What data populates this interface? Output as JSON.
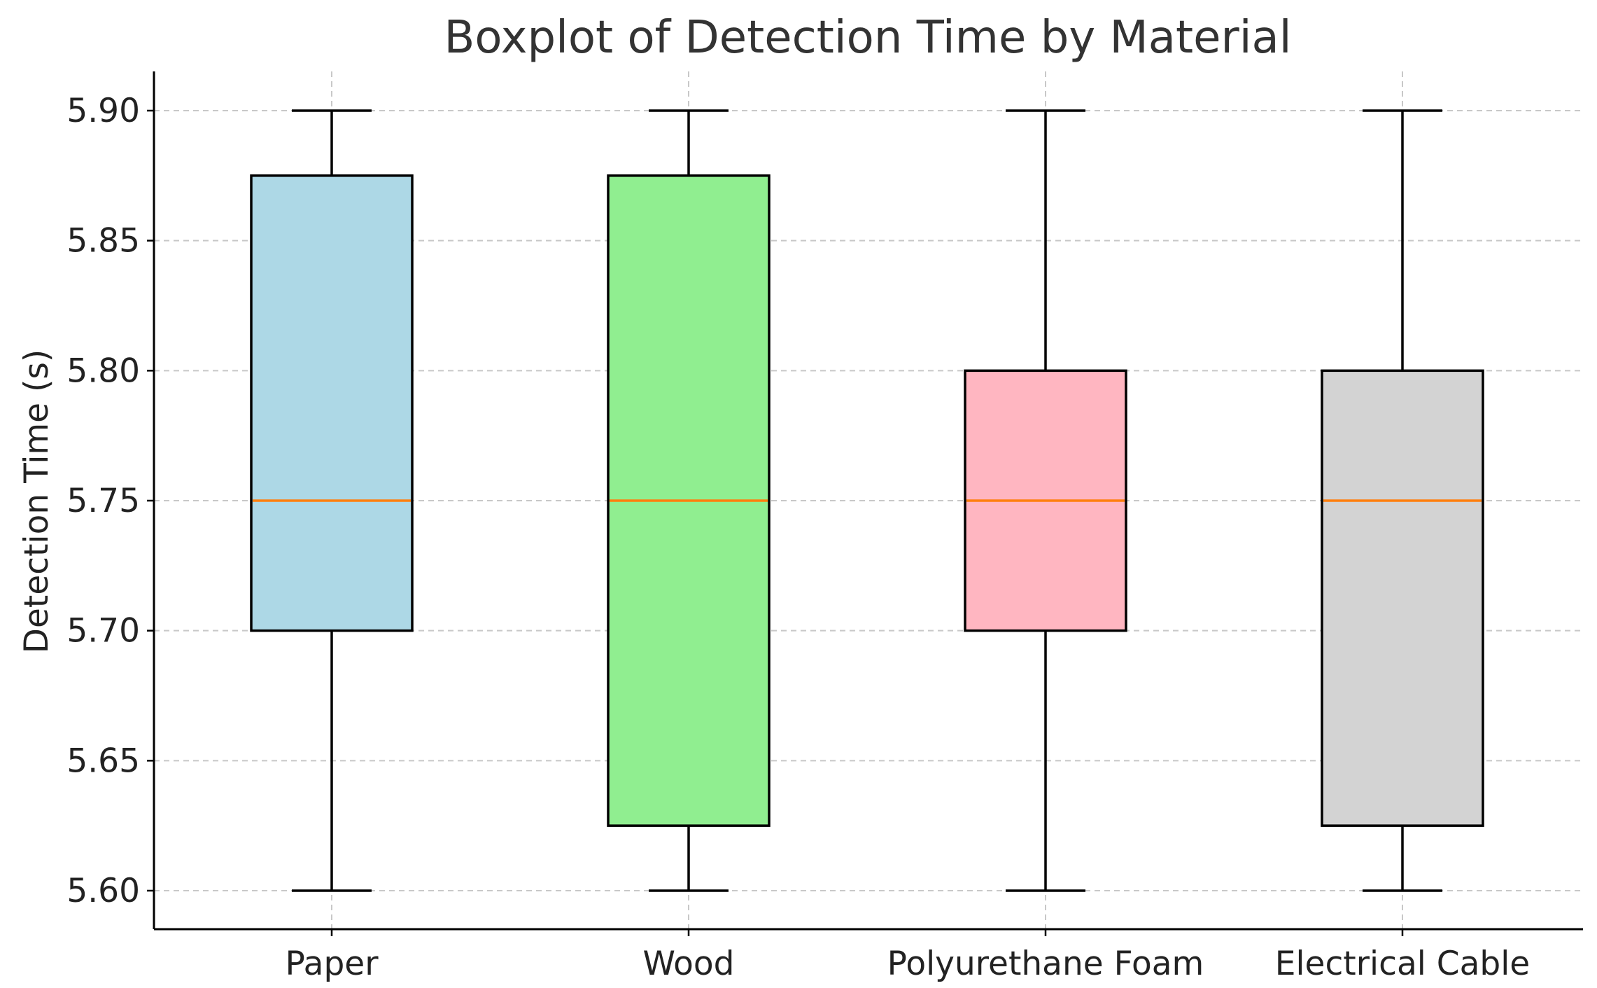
{
  "chart_data": {
    "type": "box",
    "title": "Boxplot of Detection Time by Material",
    "xlabel": "",
    "ylabel": "Detection Time (s)",
    "ylim": [
      5.585,
      5.915
    ],
    "yticks": [
      "5.60",
      "5.65",
      "5.70",
      "5.75",
      "5.80",
      "5.85",
      "5.90"
    ],
    "ytick_values": [
      5.6,
      5.65,
      5.7,
      5.75,
      5.8,
      5.85,
      5.9
    ],
    "grid": true,
    "categories": [
      "Paper",
      "Wood",
      "Polyurethane Foam",
      "Electrical Cable"
    ],
    "boxes": [
      {
        "category": "Paper",
        "min": 5.6,
        "q1": 5.7,
        "median": 5.75,
        "q3": 5.875,
        "max": 5.9,
        "color": "#add8e6"
      },
      {
        "category": "Wood",
        "min": 5.6,
        "q1": 5.625,
        "median": 5.75,
        "q3": 5.875,
        "max": 5.9,
        "color": "#90ee90"
      },
      {
        "category": "Polyurethane Foam",
        "min": 5.6,
        "q1": 5.7,
        "median": 5.75,
        "q3": 5.8,
        "max": 5.9,
        "color": "#ffb6c1"
      },
      {
        "category": "Electrical Cable",
        "min": 5.6,
        "q1": 5.625,
        "median": 5.75,
        "q3": 5.8,
        "max": 5.9,
        "color": "#d3d3d3"
      }
    ],
    "median_color": "#ff7f0e"
  }
}
